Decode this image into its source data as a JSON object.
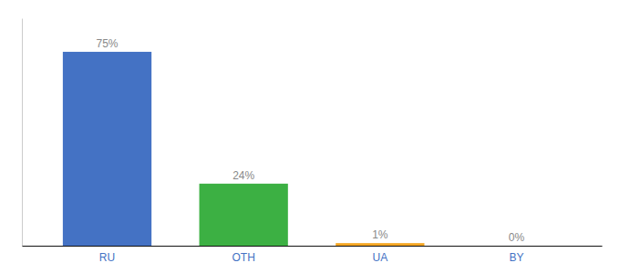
{
  "chart_data": {
    "type": "bar",
    "categories": [
      "RU",
      "OTH",
      "UA",
      "BY"
    ],
    "values": [
      75,
      24,
      1,
      0
    ],
    "value_labels": [
      "75%",
      "24%",
      "1%",
      "0%"
    ],
    "colors": [
      "#4472c4",
      "#3cb043",
      "#f5a623",
      "#4472c4"
    ],
    "ylim": [
      0,
      88
    ],
    "data_labels": true,
    "tick_labels": "x"
  }
}
